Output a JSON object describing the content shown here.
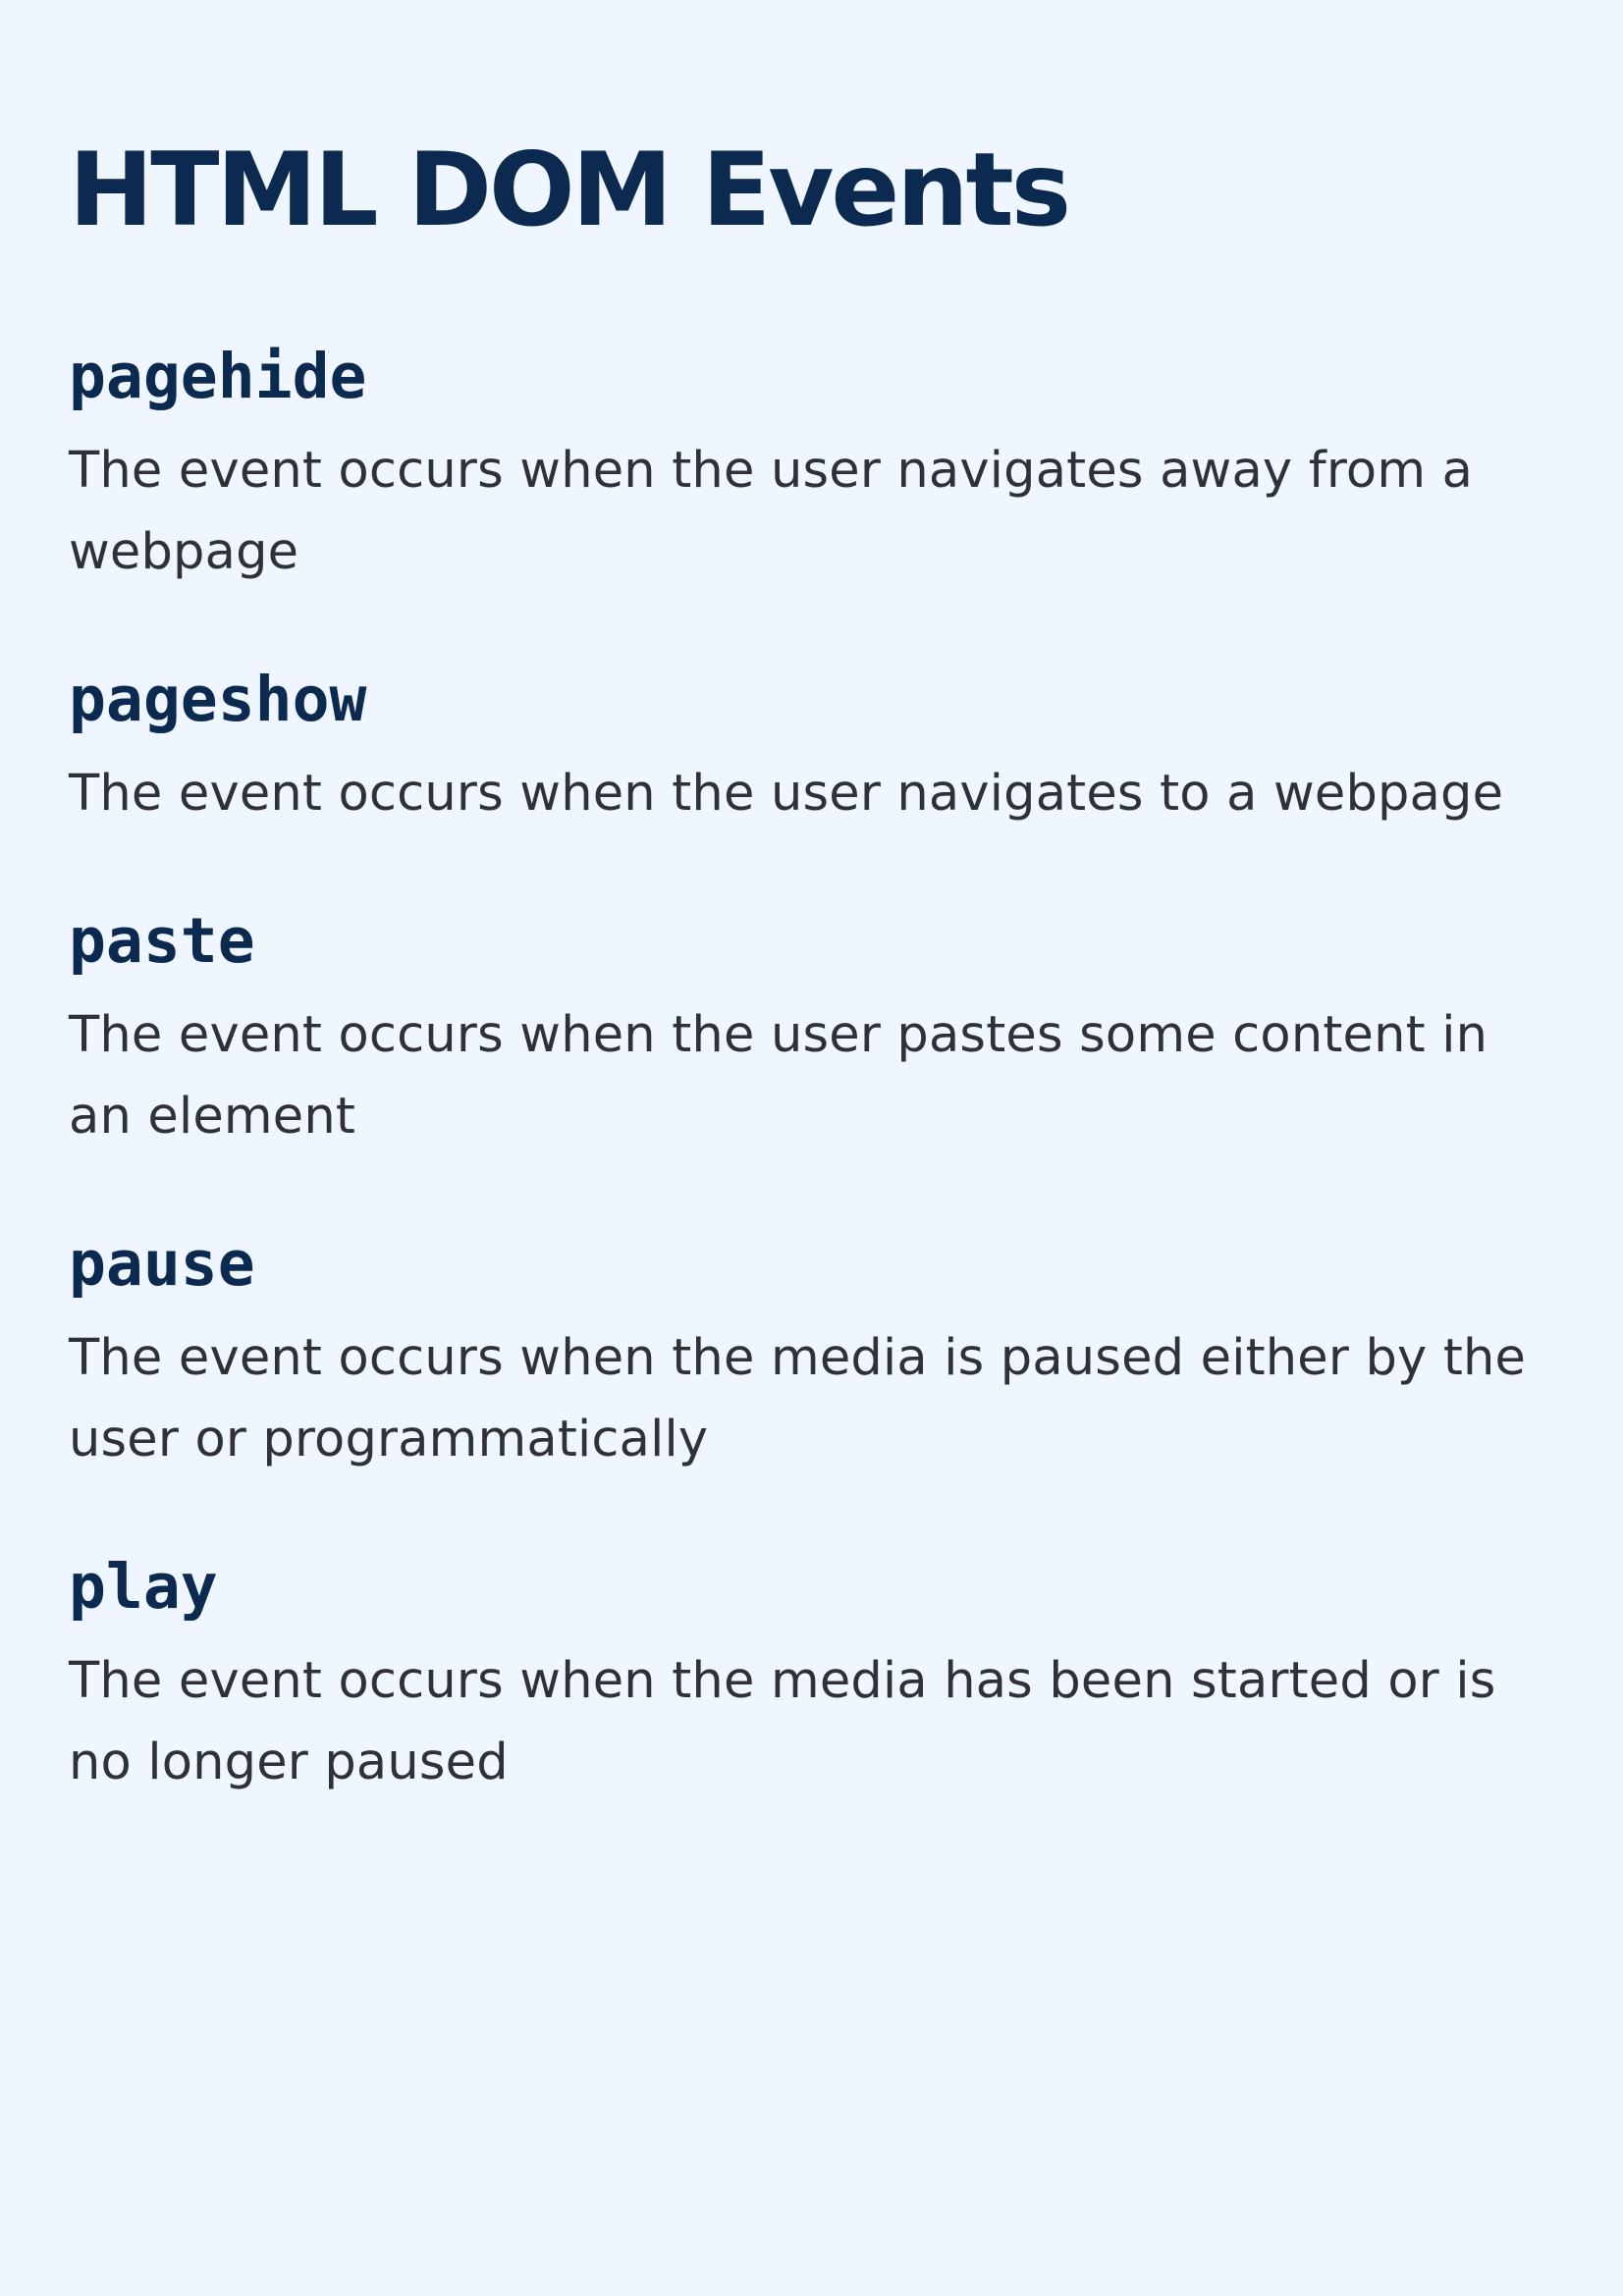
{
  "page": {
    "title": "HTML DOM Events"
  },
  "events": [
    {
      "name": "pagehide",
      "description": "The event occurs when the user navigates away from a webpage"
    },
    {
      "name": "pageshow",
      "description": "The event occurs when the user navigates to a webpage"
    },
    {
      "name": "paste",
      "description": "The event occurs when the user pastes some content in an element"
    },
    {
      "name": "pause",
      "description": "The event occurs when the media is paused either by the user or programmatically"
    },
    {
      "name": "play",
      "description": "The event occurs when the media has been started or is no longer paused"
    }
  ],
  "colors": {
    "background": "#eff6ff",
    "heading": "#0c2a4f",
    "body_text": "#2f3136"
  }
}
